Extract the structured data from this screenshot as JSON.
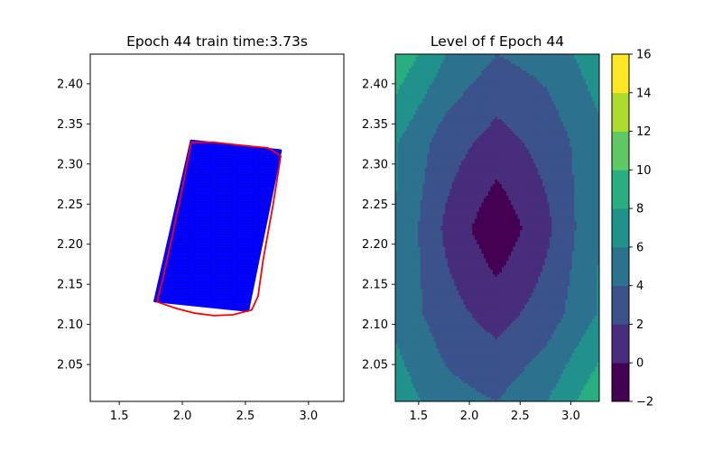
{
  "chart_data": [
    {
      "type": "scatter",
      "title": "Epoch 44 train time:3.73s",
      "xlim": [
        1.27,
        3.28
      ],
      "ylim": [
        2.004,
        2.437
      ],
      "xticks": [
        "1.5",
        "2.0",
        "2.5",
        "3.0"
      ],
      "yticks": [
        "2.05",
        "2.10",
        "2.15",
        "2.20",
        "2.25",
        "2.30",
        "2.35",
        "2.40"
      ],
      "colors": {
        "points": "#0000ff",
        "boundary": "#ff0000"
      },
      "points_region": [
        [
          2.07,
          2.329
        ],
        [
          2.78,
          2.317
        ],
        [
          2.52,
          2.117
        ],
        [
          1.78,
          2.129
        ]
      ],
      "boundary": [
        [
          2.07,
          2.327
        ],
        [
          2.25,
          2.327
        ],
        [
          2.55,
          2.322
        ],
        [
          2.68,
          2.32
        ],
        [
          2.78,
          2.31
        ],
        [
          2.72,
          2.25
        ],
        [
          2.64,
          2.18
        ],
        [
          2.6,
          2.135
        ],
        [
          2.55,
          2.118
        ],
        [
          2.4,
          2.112
        ],
        [
          2.25,
          2.111
        ],
        [
          2.1,
          2.114
        ],
        [
          1.95,
          2.12
        ],
        [
          1.8,
          2.128
        ],
        [
          1.85,
          2.16
        ],
        [
          1.92,
          2.21
        ],
        [
          2.0,
          2.27
        ],
        [
          2.07,
          2.327
        ]
      ]
    },
    {
      "type": "contour",
      "title": "Level of f Epoch 44",
      "xlim": [
        1.27,
        3.28
      ],
      "ylim": [
        2.004,
        2.437
      ],
      "xticks": [
        "1.5",
        "2.0",
        "2.5",
        "3.0"
      ],
      "yticks": [
        "2.05",
        "2.10",
        "2.15",
        "2.20",
        "2.25",
        "2.30",
        "2.35",
        "2.40"
      ],
      "colorbar": {
        "levels": [
          -2,
          0,
          2,
          4,
          6,
          8,
          10,
          12,
          14,
          16
        ],
        "tick_labels": [
          "−2",
          "0",
          "2",
          "4",
          "6",
          "8",
          "10",
          "12",
          "14",
          "16"
        ],
        "colors": [
          "#440154",
          "#472d7b",
          "#3b528b",
          "#2c728e",
          "#21918c",
          "#28ae80",
          "#5ec962",
          "#addc30",
          "#fde725"
        ]
      },
      "grid_x": [
        1.27,
        1.77,
        2.27,
        2.77,
        3.28
      ],
      "grid_y": [
        2.004,
        2.112,
        2.22,
        2.328,
        2.437
      ],
      "grid_z": [
        [
          7.2,
          4.8,
          4.0,
          6.0,
          9.6
        ],
        [
          5.5,
          2.8,
          1.2,
          3.0,
          6.2
        ],
        [
          6.0,
          1.6,
          -1.6,
          1.6,
          6.0
        ],
        [
          6.2,
          3.0,
          1.2,
          2.8,
          5.5
        ],
        [
          9.6,
          6.0,
          4.0,
          4.8,
          7.2
        ]
      ]
    }
  ]
}
